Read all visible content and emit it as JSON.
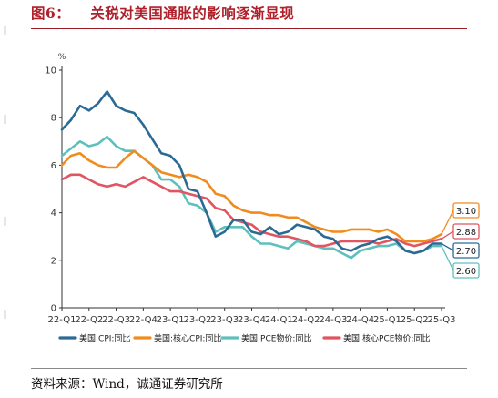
{
  "header": {
    "figure_label": "图6：",
    "title_text": "关税对美国通胀的影响逐渐显现"
  },
  "source": {
    "text": "资料来源：Wind，诚通证券研究所"
  },
  "chart_data": {
    "type": "line",
    "title": "",
    "ylabel": "%",
    "xlabel": "",
    "ylim": [
      0,
      10
    ],
    "yticks": [
      0,
      2,
      4,
      6,
      8,
      10
    ],
    "grid": false,
    "legend_position": "bottom",
    "x": [
      "22-Q1",
      "",
      "",
      "22-Q2",
      "",
      "",
      "22-Q3",
      "",
      "",
      "22-Q4",
      "",
      "",
      "23-Q1",
      "",
      "",
      "23-Q2",
      "",
      "",
      "23-Q3",
      "",
      "",
      "23-Q4",
      "",
      "",
      "24-Q1",
      "",
      "",
      "24-Q2",
      "",
      "",
      "24-Q3",
      "",
      "",
      "24-Q4",
      "",
      "",
      "25-Q1",
      "",
      "",
      "25-Q2",
      "",
      "",
      "25-Q3"
    ],
    "xtick_labels": [
      "22-Q1",
      "22-Q2",
      "22-Q4",
      "23-Q2",
      "23-Q4",
      "24-Q2",
      "24-Q4",
      "25-Q3"
    ],
    "series": [
      {
        "name": "美国:CPI:同比",
        "color": "#2b6a94",
        "values": [
          7.5,
          7.9,
          8.5,
          8.3,
          8.6,
          9.1,
          8.5,
          8.3,
          8.2,
          7.7,
          7.1,
          6.5,
          6.4,
          6.0,
          5.0,
          4.9,
          4.0,
          3.0,
          3.2,
          3.7,
          3.7,
          3.2,
          3.1,
          3.4,
          3.1,
          3.2,
          3.5,
          3.4,
          3.3,
          3.0,
          2.9,
          2.5,
          2.4,
          2.6,
          2.7,
          2.9,
          3.0,
          2.8,
          2.4,
          2.3,
          2.4,
          2.7,
          2.7
        ],
        "end_label": "2.70"
      },
      {
        "name": "美国:核心CPI:同比",
        "color": "#f08c1e",
        "values": [
          6.0,
          6.4,
          6.5,
          6.2,
          6.0,
          5.9,
          5.9,
          6.3,
          6.6,
          6.3,
          6.0,
          5.7,
          5.6,
          5.5,
          5.6,
          5.5,
          5.3,
          4.8,
          4.7,
          4.3,
          4.1,
          4.0,
          4.0,
          3.9,
          3.9,
          3.8,
          3.8,
          3.6,
          3.4,
          3.3,
          3.2,
          3.2,
          3.3,
          3.3,
          3.3,
          3.2,
          3.3,
          3.1,
          2.8,
          2.8,
          2.8,
          2.9,
          3.1
        ],
        "end_label": "3.10"
      },
      {
        "name": "美国:PCE物价:同比",
        "color": "#5fbfbd",
        "values": [
          6.4,
          6.7,
          7.0,
          6.8,
          6.9,
          7.2,
          6.8,
          6.6,
          6.6,
          6.3,
          6.0,
          5.4,
          5.4,
          5.1,
          4.4,
          4.3,
          4.0,
          3.2,
          3.4,
          3.4,
          3.4,
          3.0,
          2.7,
          2.7,
          2.6,
          2.5,
          2.8,
          2.7,
          2.6,
          2.5,
          2.5,
          2.3,
          2.1,
          2.4,
          2.5,
          2.6,
          2.6,
          2.7,
          2.4,
          2.3,
          2.4,
          2.6,
          2.6
        ],
        "end_label": "2.60"
      },
      {
        "name": "美国:核心PCE物价:同比",
        "color": "#e0555f",
        "values": [
          5.4,
          5.6,
          5.6,
          5.4,
          5.2,
          5.1,
          5.2,
          5.1,
          5.3,
          5.5,
          5.3,
          5.1,
          4.9,
          4.9,
          4.8,
          4.7,
          4.6,
          4.2,
          4.1,
          3.7,
          3.6,
          3.5,
          3.2,
          3.1,
          3.0,
          3.0,
          2.9,
          2.8,
          2.6,
          2.6,
          2.7,
          2.8,
          2.8,
          2.8,
          2.8,
          2.7,
          2.8,
          2.9,
          2.7,
          2.6,
          2.7,
          2.8,
          2.9
        ],
        "end_label": "2.88"
      }
    ]
  }
}
